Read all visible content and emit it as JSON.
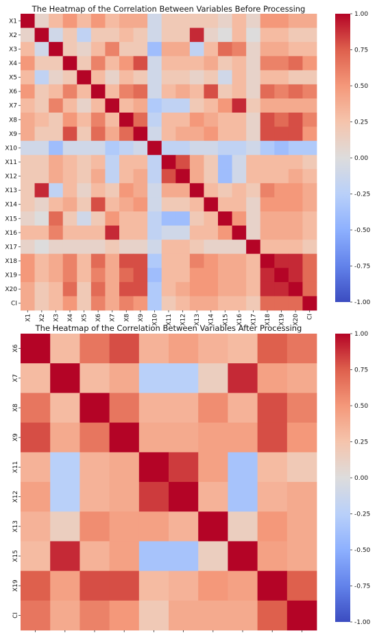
{
  "chart_data": [
    {
      "type": "heatmap",
      "title": "The Heatmap of the Correlation Between Variables Before Processing",
      "labels": [
        "X1",
        "X2",
        "X3",
        "X4",
        "X5",
        "X6",
        "X7",
        "X8",
        "X9",
        "X10",
        "X11",
        "X12",
        "X13",
        "X14",
        "X15",
        "X16",
        "X17",
        "X18",
        "X19",
        "X20",
        "CI"
      ],
      "colorbar": {
        "min": -1.0,
        "max": 1.0,
        "ticks": [
          "1.00",
          "0.75",
          "0.50",
          "0.25",
          "0.00",
          "-0.25",
          "-0.50",
          "-0.75",
          "-1.00"
        ],
        "colormap": "coolwarm"
      },
      "values": [
        [
          1.0,
          0.1,
          0.3,
          0.5,
          0.3,
          0.5,
          0.3,
          0.4,
          0.4,
          -0.1,
          0.2,
          0.2,
          0.2,
          0.2,
          0.1,
          0.3,
          0.1,
          0.5,
          0.5,
          0.4,
          0.4
        ],
        [
          0.1,
          1.0,
          -0.1,
          0.2,
          -0.2,
          0.2,
          0.2,
          0.3,
          0.2,
          -0.1,
          0.2,
          0.2,
          0.9,
          0.1,
          0.0,
          0.3,
          0.0,
          0.3,
          0.3,
          0.2,
          0.2
        ],
        [
          0.3,
          -0.1,
          1.0,
          0.2,
          0.1,
          0.3,
          0.6,
          0.2,
          0.2,
          -0.4,
          0.4,
          0.4,
          -0.2,
          0.3,
          0.7,
          0.6,
          0.1,
          0.4,
          0.4,
          0.3,
          0.3
        ],
        [
          0.5,
          0.2,
          0.2,
          1.0,
          0.2,
          0.6,
          0.3,
          0.5,
          0.8,
          -0.1,
          0.3,
          0.3,
          0.3,
          0.4,
          0.2,
          0.3,
          0.1,
          0.6,
          0.6,
          0.7,
          0.5
        ],
        [
          0.3,
          -0.2,
          0.1,
          0.2,
          1.0,
          0.3,
          0.1,
          0.3,
          0.2,
          -0.1,
          0.2,
          0.2,
          0.1,
          0.2,
          -0.1,
          0.3,
          0.1,
          0.3,
          0.3,
          0.2,
          0.2
        ],
        [
          0.5,
          0.2,
          0.3,
          0.6,
          0.3,
          1.0,
          0.3,
          0.6,
          0.7,
          -0.1,
          0.3,
          0.4,
          0.3,
          0.8,
          0.2,
          0.3,
          0.1,
          0.7,
          0.6,
          0.7,
          0.6
        ],
        [
          0.3,
          0.2,
          0.6,
          0.3,
          0.1,
          0.3,
          1.0,
          0.3,
          0.4,
          -0.3,
          -0.2,
          -0.2,
          0.2,
          0.3,
          0.5,
          0.9,
          0.2,
          0.4,
          0.4,
          0.4,
          0.4
        ],
        [
          0.4,
          0.3,
          0.2,
          0.5,
          0.3,
          0.6,
          0.3,
          1.0,
          0.7,
          -0.2,
          0.3,
          0.3,
          0.5,
          0.4,
          0.3,
          0.3,
          0.1,
          0.8,
          0.7,
          0.8,
          0.6
        ],
        [
          0.4,
          0.2,
          0.2,
          0.8,
          0.2,
          0.7,
          0.4,
          0.7,
          1.0,
          -0.1,
          0.3,
          0.4,
          0.4,
          0.5,
          0.3,
          0.3,
          0.1,
          0.8,
          0.8,
          0.8,
          0.5
        ],
        [
          -0.1,
          -0.1,
          -0.4,
          -0.1,
          -0.1,
          -0.1,
          -0.3,
          -0.2,
          -0.1,
          1.0,
          -0.2,
          -0.2,
          -0.1,
          -0.1,
          -0.2,
          -0.2,
          -0.1,
          -0.3,
          -0.4,
          -0.3,
          -0.3
        ],
        [
          0.2,
          0.2,
          0.4,
          0.3,
          0.2,
          0.3,
          -0.2,
          0.3,
          0.3,
          -0.2,
          1.0,
          0.8,
          0.4,
          0.2,
          -0.4,
          -0.1,
          0.3,
          0.3,
          0.3,
          0.3,
          0.2
        ],
        [
          0.2,
          0.2,
          0.4,
          0.3,
          0.2,
          0.4,
          -0.2,
          0.3,
          0.4,
          -0.2,
          0.8,
          1.0,
          0.4,
          0.2,
          -0.4,
          -0.1,
          0.3,
          0.3,
          0.3,
          0.4,
          0.3
        ],
        [
          0.2,
          0.9,
          -0.2,
          0.3,
          0.1,
          0.3,
          0.2,
          0.5,
          0.4,
          -0.1,
          0.4,
          0.4,
          1.0,
          0.3,
          0.2,
          0.3,
          0.2,
          0.6,
          0.5,
          0.5,
          0.4
        ],
        [
          0.2,
          0.1,
          0.3,
          0.4,
          0.2,
          0.8,
          0.3,
          0.4,
          0.5,
          -0.1,
          0.2,
          0.2,
          0.3,
          1.0,
          0.3,
          0.3,
          0.1,
          0.5,
          0.5,
          0.5,
          0.4
        ],
        [
          0.1,
          0.0,
          0.7,
          0.2,
          -0.1,
          0.2,
          0.5,
          0.3,
          0.3,
          -0.2,
          -0.4,
          -0.4,
          0.2,
          0.3,
          1.0,
          0.5,
          0.1,
          0.4,
          0.4,
          0.4,
          0.3
        ],
        [
          0.3,
          0.3,
          0.6,
          0.3,
          0.3,
          0.3,
          0.9,
          0.3,
          0.3,
          -0.2,
          -0.1,
          -0.1,
          0.3,
          0.3,
          0.5,
          1.0,
          0.1,
          0.4,
          0.4,
          0.4,
          0.3
        ],
        [
          0.1,
          0.0,
          0.1,
          0.1,
          0.1,
          0.1,
          0.2,
          0.1,
          0.1,
          -0.1,
          0.3,
          0.3,
          0.2,
          0.1,
          0.1,
          0.1,
          1.0,
          0.3,
          0.3,
          0.3,
          0.2
        ],
        [
          0.5,
          0.3,
          0.4,
          0.6,
          0.3,
          0.7,
          0.4,
          0.8,
          0.8,
          -0.3,
          0.3,
          0.3,
          0.6,
          0.5,
          0.4,
          0.4,
          0.3,
          1.0,
          0.9,
          0.9,
          0.7
        ],
        [
          0.5,
          0.3,
          0.4,
          0.6,
          0.3,
          0.6,
          0.4,
          0.7,
          0.8,
          -0.4,
          0.3,
          0.3,
          0.5,
          0.5,
          0.4,
          0.4,
          0.3,
          0.9,
          1.0,
          0.9,
          0.7
        ],
        [
          0.4,
          0.2,
          0.3,
          0.7,
          0.2,
          0.7,
          0.4,
          0.8,
          0.8,
          -0.3,
          0.3,
          0.4,
          0.5,
          0.5,
          0.4,
          0.4,
          0.3,
          0.9,
          0.9,
          1.0,
          0.7
        ],
        [
          0.4,
          0.2,
          0.3,
          0.5,
          0.2,
          0.6,
          0.4,
          0.6,
          0.5,
          -0.3,
          0.2,
          0.3,
          0.4,
          0.4,
          0.3,
          0.3,
          0.2,
          0.7,
          0.7,
          0.7,
          1.0
        ]
      ]
    },
    {
      "type": "heatmap",
      "title": "The Heatmap of the Correlation Between Variables After Processing",
      "labels": [
        "X6",
        "X7",
        "X8",
        "X9",
        "X11",
        "X12",
        "X13",
        "X15",
        "X19",
        "CI"
      ],
      "colorbar": {
        "min": -1.0,
        "max": 1.0,
        "ticks": [
          "1.00",
          "0.75",
          "0.50",
          "0.25",
          "0.00",
          "-0.25",
          "-0.50",
          "-0.75",
          "-1.00"
        ],
        "colormap": "coolwarm"
      },
      "values": [
        [
          1.0,
          0.3,
          0.65,
          0.8,
          0.35,
          0.45,
          0.35,
          0.3,
          0.75,
          0.65
        ],
        [
          0.3,
          1.0,
          0.3,
          0.4,
          -0.25,
          -0.25,
          0.15,
          0.9,
          0.45,
          0.4
        ],
        [
          0.65,
          0.3,
          1.0,
          0.65,
          0.35,
          0.35,
          0.55,
          0.35,
          0.8,
          0.6
        ],
        [
          0.8,
          0.4,
          0.65,
          1.0,
          0.4,
          0.4,
          0.45,
          0.45,
          0.8,
          0.5
        ],
        [
          0.35,
          -0.25,
          0.35,
          0.4,
          1.0,
          0.85,
          0.45,
          -0.35,
          0.3,
          0.2
        ],
        [
          0.45,
          -0.25,
          0.35,
          0.4,
          0.85,
          1.0,
          0.35,
          -0.35,
          0.35,
          0.4
        ],
        [
          0.35,
          0.15,
          0.55,
          0.45,
          0.45,
          0.35,
          1.0,
          0.15,
          0.5,
          0.4
        ],
        [
          0.3,
          0.9,
          0.35,
          0.45,
          -0.35,
          -0.35,
          0.15,
          1.0,
          0.45,
          0.4
        ],
        [
          0.75,
          0.45,
          0.8,
          0.8,
          0.3,
          0.35,
          0.5,
          0.45,
          1.0,
          0.75
        ],
        [
          0.65,
          0.4,
          0.6,
          0.5,
          0.2,
          0.4,
          0.4,
          0.4,
          0.75,
          1.0
        ]
      ]
    }
  ]
}
